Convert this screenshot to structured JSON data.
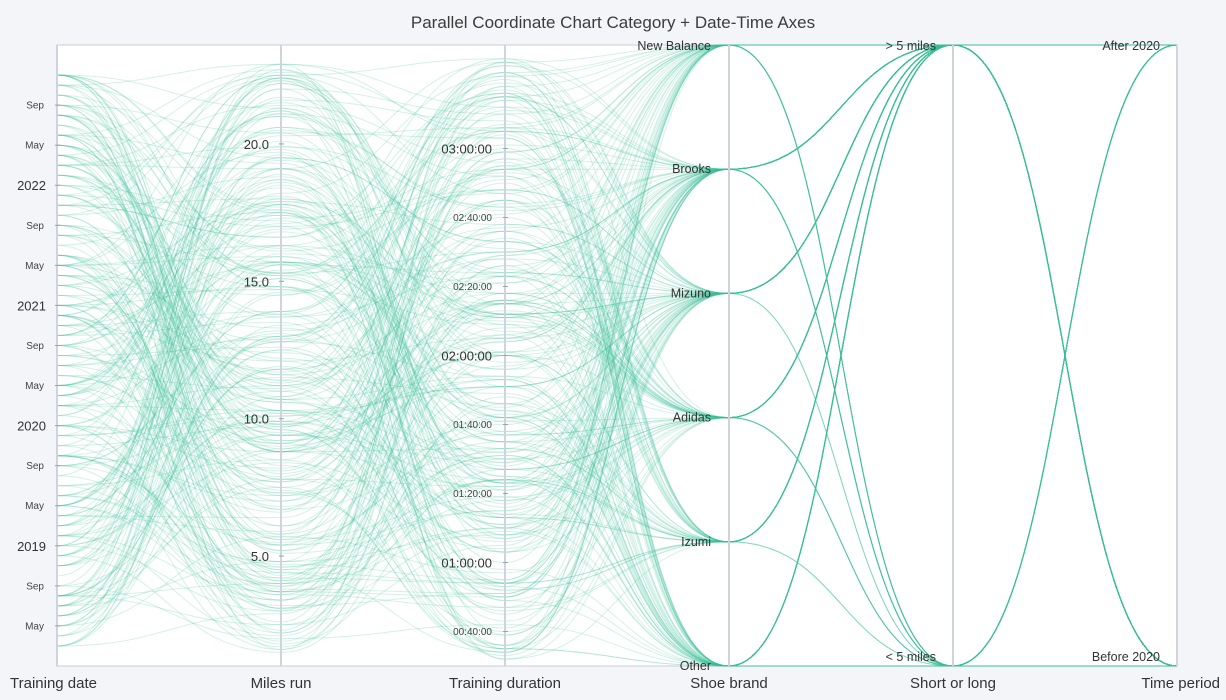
{
  "chart_data": {
    "type": "parallel-coordinates",
    "title": "Parallel Coordinate Chart Category + Date-Time Axes",
    "line_color": "#3cbf94",
    "background": "#ffffff",
    "axes": [
      {
        "name": "Training date",
        "kind": "datetime",
        "range": [
          "2018-01",
          "2023-03"
        ],
        "ticks": [
          {
            "label": "Sep",
            "value": "2022-09",
            "major": false
          },
          {
            "label": "May",
            "value": "2022-05",
            "major": false
          },
          {
            "label": "2022",
            "value": "2022-01",
            "major": true
          },
          {
            "label": "Sep",
            "value": "2021-09",
            "major": false
          },
          {
            "label": "May",
            "value": "2021-05",
            "major": false
          },
          {
            "label": "2021",
            "value": "2021-01",
            "major": true
          },
          {
            "label": "Sep",
            "value": "2020-09",
            "major": false
          },
          {
            "label": "May",
            "value": "2020-05",
            "major": false
          },
          {
            "label": "2020",
            "value": "2020-01",
            "major": true
          },
          {
            "label": "Sep",
            "value": "2019-09",
            "major": false
          },
          {
            "label": "May",
            "value": "2019-05",
            "major": false
          },
          {
            "label": "2019",
            "value": "2019-01",
            "major": true
          },
          {
            "label": "Sep",
            "value": "2018-09",
            "major": false
          },
          {
            "label": "May",
            "value": "2018-05",
            "major": false
          }
        ]
      },
      {
        "name": "Miles run",
        "kind": "linear",
        "range": [
          1,
          23.6
        ],
        "ticks": [
          {
            "label": "20.0",
            "value": 20,
            "major": true
          },
          {
            "label": "15.0",
            "value": 15,
            "major": true
          },
          {
            "label": "10.0",
            "value": 10,
            "major": true
          },
          {
            "label": "5.0",
            "value": 5,
            "major": true
          }
        ]
      },
      {
        "name": "Training duration",
        "kind": "time",
        "range": [
          "00:30",
          "03:30"
        ],
        "ticks": [
          {
            "label": "03:00:00",
            "value": "03:00",
            "major": true
          },
          {
            "label": "02:40:00",
            "value": "02:40",
            "major": false
          },
          {
            "label": "02:20:00",
            "value": "02:20",
            "major": false
          },
          {
            "label": "02:00:00",
            "value": "02:00",
            "major": true
          },
          {
            "label": "01:40:00",
            "value": "01:40",
            "major": false
          },
          {
            "label": "01:20:00",
            "value": "01:20",
            "major": false
          },
          {
            "label": "01:00:00",
            "value": "01:00",
            "major": true
          },
          {
            "label": "00:40:00",
            "value": "00:40",
            "major": false
          }
        ]
      },
      {
        "name": "Shoe brand",
        "kind": "category",
        "categories": [
          "New Balance",
          "Brooks",
          "Mizuno",
          "Adidas",
          "Izumi",
          "Other"
        ]
      },
      {
        "name": "Short or long",
        "kind": "category",
        "categories": [
          "> 5 miles",
          "< 5 miles"
        ]
      },
      {
        "name": "Time period",
        "kind": "category",
        "categories": [
          "After 2020",
          "Before 2020"
        ]
      }
    ],
    "grid": false,
    "legend": "none",
    "record_count": 300
  }
}
